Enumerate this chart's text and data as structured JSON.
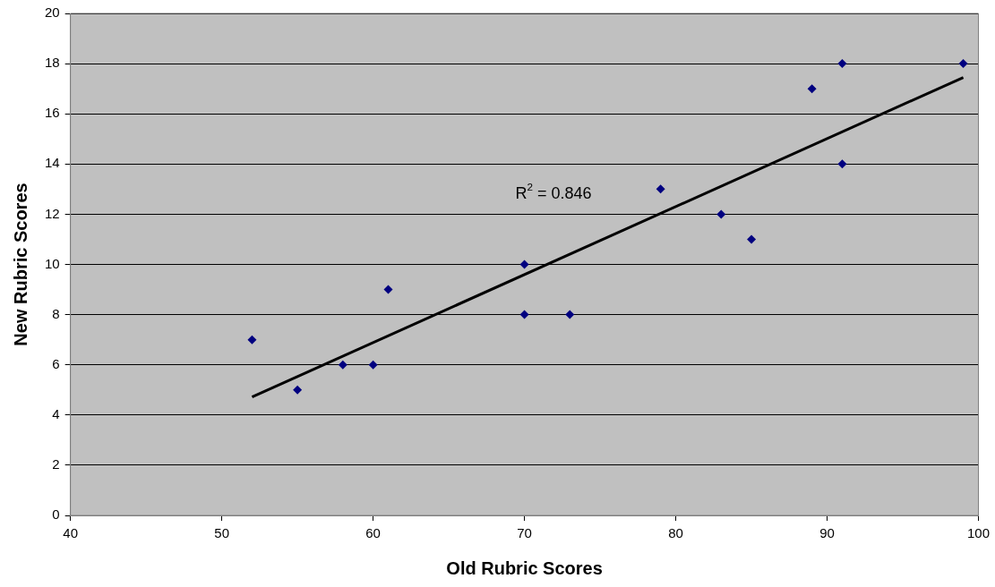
{
  "chart_data": {
    "type": "scatter",
    "xlabel": "Old Rubric Scores",
    "ylabel": "New Rubric Scores",
    "xlim": [
      40,
      100
    ],
    "xticks": [
      40,
      50,
      60,
      70,
      80,
      90,
      100
    ],
    "ylim": [
      0,
      20
    ],
    "yticks": [
      0,
      2,
      4,
      6,
      8,
      10,
      12,
      14,
      16,
      18,
      20
    ],
    "grid": "y",
    "marker": "diamond",
    "legend": false,
    "series": [
      {
        "color": "#000080",
        "x": [
          52,
          55,
          58,
          60,
          61,
          70,
          70,
          73,
          79,
          83,
          85,
          89,
          91,
          91,
          99
        ],
        "values": [
          7,
          5,
          6,
          6,
          9,
          10,
          8,
          8,
          13,
          12,
          11,
          17,
          18,
          14,
          18
        ]
      },
      {
        "type": "line",
        "color": "#000000",
        "marker": "none",
        "x": [
          52,
          99
        ],
        "values": [
          4.72,
          17.45
        ]
      }
    ],
    "annotations": [
      "R$^{2}$ = 0.846"
    ]
  }
}
